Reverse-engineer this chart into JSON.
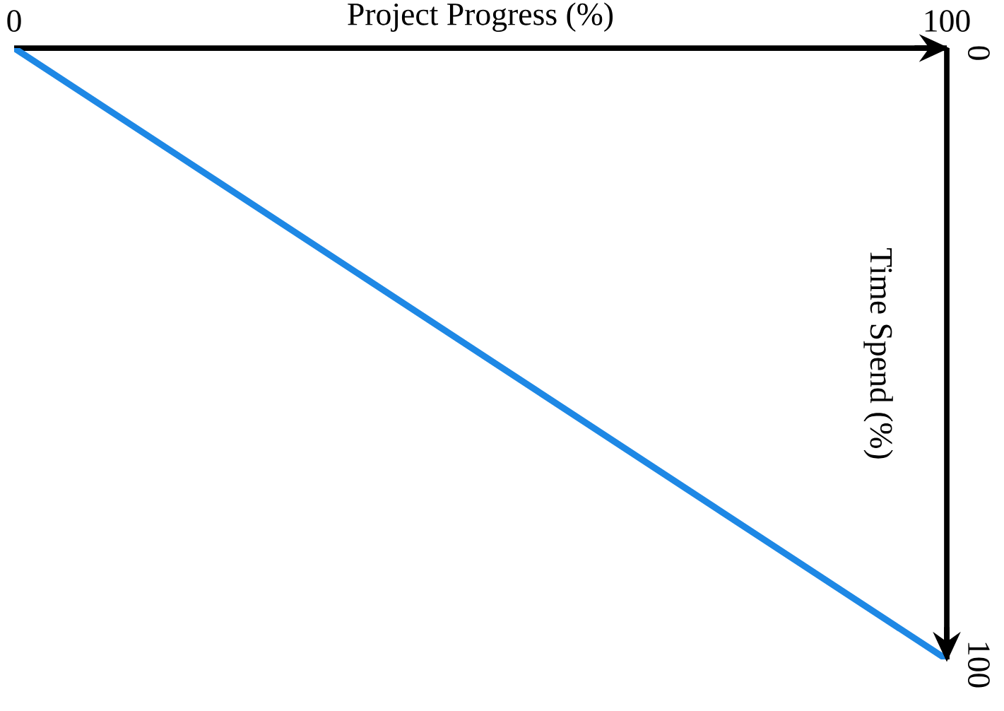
{
  "chart_data": {
    "type": "line",
    "xlabel": "Project Progress (%)",
    "ylabel": "Time Spend (%)",
    "x": [
      0,
      100
    ],
    "series": [
      {
        "color": "#1e88e5",
        "values": [
          0,
          100
        ]
      }
    ],
    "xlim": [
      0,
      100
    ],
    "ylim": [
      100,
      0
    ],
    "xticks": [
      0,
      100
    ],
    "yticks": [
      0,
      100
    ],
    "marker": "none",
    "line_style": "solid"
  }
}
